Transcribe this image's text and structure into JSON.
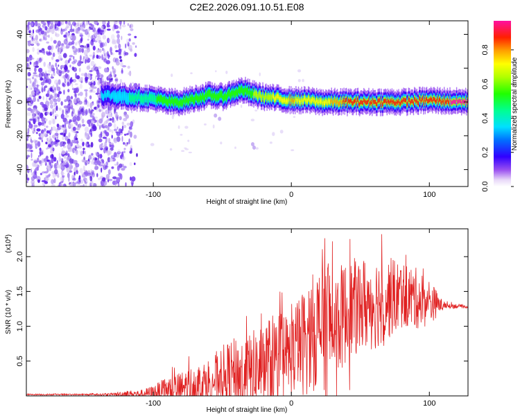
{
  "page_title": "C2E2.2026.091.10.51.E08",
  "chart_data": [
    {
      "type": "heatmap",
      "title": "C2E2.2026.091.10.51.E08",
      "xlabel": "Height of straight line (km)",
      "ylabel": "Frequency (Hz)",
      "xlim": [
        -192,
        128
      ],
      "ylim": [
        -50,
        48
      ],
      "xticks": [
        -100,
        0,
        100
      ],
      "yticks": [
        -40,
        -20,
        0,
        20,
        40
      ],
      "xtick_labels": [
        "-100",
        "0",
        "100"
      ],
      "ytick_labels": [
        "-40",
        "-20",
        "0",
        "20",
        "40"
      ],
      "colorbar": {
        "label": "Normalized spectral amplitude",
        "range": [
          0,
          0.97
        ],
        "ticks": [
          0.0,
          0.2,
          0.4,
          0.6,
          0.8
        ],
        "tick_labels": [
          "0.0",
          "0.2",
          "0.4",
          "0.6",
          "0.8"
        ]
      },
      "ridge": {
        "description_x": [
          -135,
          -120,
          -100,
          -90,
          -80,
          -70,
          -60,
          -50,
          -40,
          -35,
          -30,
          -20,
          -10,
          0,
          10,
          20,
          30,
          40,
          60,
          80,
          100,
          128
        ],
        "frequency": [
          4,
          3,
          2,
          0,
          0,
          2,
          4,
          3,
          6,
          7,
          5,
          3,
          2,
          1,
          1,
          0,
          0,
          0,
          0,
          0,
          1,
          0
        ],
        "peak_amplitude": [
          0.3,
          0.35,
          0.45,
          0.5,
          0.55,
          0.5,
          0.5,
          0.55,
          0.55,
          0.5,
          0.55,
          0.6,
          0.7,
          0.75,
          0.7,
          0.7,
          0.75,
          0.85,
          0.9,
          0.9,
          0.85,
          0.95
        ]
      }
    },
    {
      "type": "line",
      "xlabel": "Height of straight line (km)",
      "ylabel": "SNR (10 * v/v)",
      "scale_label": "(x10",
      "scale_exponent": "4",
      "scale_suffix": ")",
      "xlim": [
        -192,
        128
      ],
      "ylim": [
        0,
        2.4
      ],
      "xticks": [
        -100,
        0,
        100
      ],
      "yticks": [
        0.5,
        1.0,
        1.5,
        2.0
      ],
      "xtick_labels": [
        "-100",
        "0",
        "100"
      ],
      "ytick_labels": [
        "0.5",
        "1.0",
        "1.5",
        "2.0"
      ],
      "color": "#e02020",
      "series": [
        {
          "name": "SNR",
          "x": [
            -192,
            -150,
            -130,
            -120,
            -110,
            -100,
            -90,
            -80,
            -70,
            -60,
            -50,
            -40,
            -30,
            -20,
            -10,
            0,
            10,
            20,
            25,
            30,
            40,
            50,
            60,
            70,
            80,
            90,
            100,
            110,
            128
          ],
          "baseline": [
            0.02,
            0.02,
            0.02,
            0.03,
            0.03,
            0.05,
            0.08,
            0.1,
            0.15,
            0.2,
            0.28,
            0.3,
            0.3,
            0.45,
            0.5,
            0.6,
            0.8,
            1.0,
            1.1,
            1.0,
            1.2,
            1.3,
            1.35,
            1.4,
            1.45,
            1.4,
            1.35,
            1.3,
            1.28
          ],
          "envelope": [
            0.01,
            0.01,
            0.02,
            0.05,
            0.05,
            0.1,
            0.2,
            0.25,
            0.3,
            0.35,
            0.45,
            0.55,
            0.6,
            0.65,
            0.7,
            0.6,
            0.8,
            0.9,
            1.25,
            0.8,
            0.75,
            0.7,
            0.7,
            0.6,
            0.5,
            0.45,
            0.35,
            0.05,
            0.02
          ]
        }
      ]
    }
  ]
}
